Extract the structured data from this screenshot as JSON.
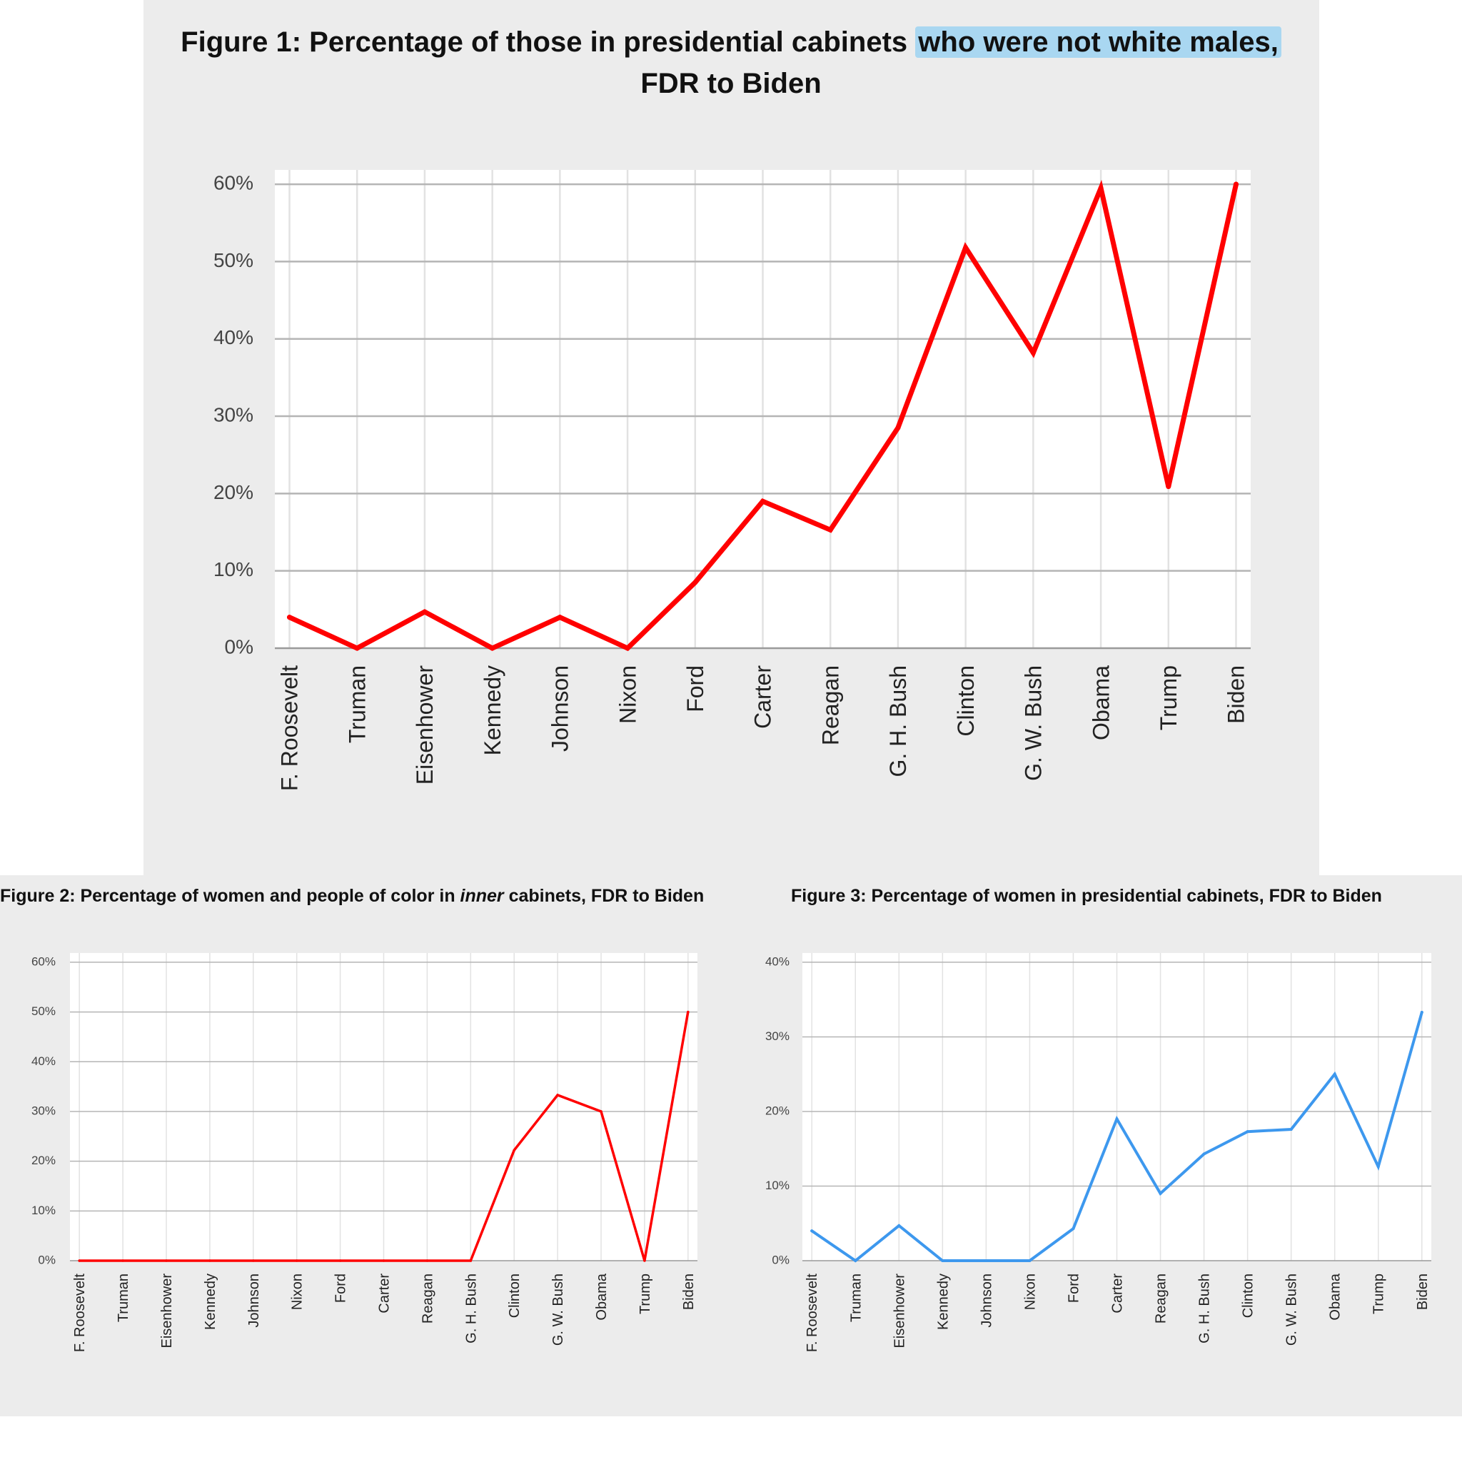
{
  "chart_data": [
    {
      "type": "line",
      "title_prefix": "Figure 1: Percentage of those in presidential cabinets ",
      "title_highlight": "who were not white males,",
      "title_suffix": "FDR to Biden",
      "categories": [
        "F. Roosevelt",
        "Truman",
        "Eisenhower",
        "Kennedy",
        "Johnson",
        "Nixon",
        "Ford",
        "Carter",
        "Reagan",
        "G. H. Bush",
        "Clinton",
        "G. W. Bush",
        "Obama",
        "Trump",
        "Biden"
      ],
      "category_labels": [
        "F. Roosevelt",
        "Truman",
        "Eisenhower",
        "Kennedy",
        "Johnson",
        "Nixon",
        "Ford",
        "Carter",
        "Reagan",
        "G. H. Bush",
        "Clinton",
        "G. W. Bush",
        "Obama",
        "Trump",
        "Biden"
      ],
      "series": [
        {
          "name": "Not white males",
          "values": [
            4,
            0,
            4.7,
            0,
            4,
            0,
            8.5,
            19,
            15.3,
            28.5,
            51.8,
            38.2,
            59.5,
            20.9,
            60
          ]
        }
      ],
      "y_ticks": [
        "0%",
        "10%",
        "20%",
        "30%",
        "40%",
        "50%",
        "60%"
      ],
      "ylim": [
        0,
        60
      ],
      "color": "#ff0000",
      "highlight_color": "#a9d7f1",
      "xlabel": "",
      "ylabel": "",
      "grid": true
    },
    {
      "type": "line",
      "title_prefix": "Figure 2: Percentage of women and people of color in ",
      "title_italic": "inner",
      "title_suffix": " cabinets, FDR to Biden",
      "categories": [
        "F. Roosevelt",
        "Truman",
        "Eisenhower",
        "Kennedy",
        "Johnson",
        "Nixon",
        "Ford",
        "Carter",
        "Reagan",
        "G. H. Bush",
        "Clinton",
        "G. W. Bush",
        "Obama",
        "Trump",
        "Biden"
      ],
      "category_labels": [
        "F. Roosevelt",
        "Truman",
        "Eisenhower",
        "Kennedy",
        "Johnson",
        "Nixon",
        "Ford",
        "Carter",
        "Reagan",
        "G. H. Bush",
        "Clinton",
        "G. W. Bush",
        "Obama",
        "Trump",
        "Biden"
      ],
      "series": [
        {
          "name": "Women and people of color (inner cabinet)",
          "values": [
            0,
            0,
            0,
            0,
            0,
            0,
            0,
            0,
            0,
            0,
            22.2,
            33.3,
            30,
            0,
            50
          ]
        }
      ],
      "y_ticks": [
        "0%",
        "10%",
        "20%",
        "30%",
        "40%",
        "50%",
        "60%"
      ],
      "ylim": [
        0,
        60
      ],
      "color": "#ff0000",
      "xlabel": "",
      "ylabel": "",
      "grid": true
    },
    {
      "type": "line",
      "title": "Figure 3: Percentage of women in presidential cabinets, FDR to Biden",
      "categories": [
        "F. Roosevelt",
        "Truman",
        "Eisenhower",
        "Kennedy",
        "Johnson",
        "Nixon",
        "Ford",
        "Carter",
        "Reagan",
        "G. H. Bush",
        "Clinton",
        "G. W. Bush",
        "Obama",
        "Trump",
        "Biden"
      ],
      "category_labels": [
        "F. Roosevelt",
        "Truman",
        "Eisenhower",
        "Kennedy",
        "Johnson",
        "Nixon",
        "Ford",
        "Carter",
        "Reagan",
        "G. H. Bush",
        "Clinton",
        "G. W. Bush",
        "Obama",
        "Trump",
        "Biden"
      ],
      "series": [
        {
          "name": "Women",
          "values": [
            4,
            0,
            4.7,
            0,
            0,
            0,
            4.3,
            19,
            9,
            14.3,
            17.3,
            17.6,
            25,
            12.6,
            33.3
          ]
        }
      ],
      "y_ticks": [
        "0%",
        "10%",
        "20%",
        "30%",
        "40%"
      ],
      "ylim": [
        0,
        40
      ],
      "color": "#3d98ee",
      "xlabel": "",
      "ylabel": "",
      "grid": true
    }
  ]
}
